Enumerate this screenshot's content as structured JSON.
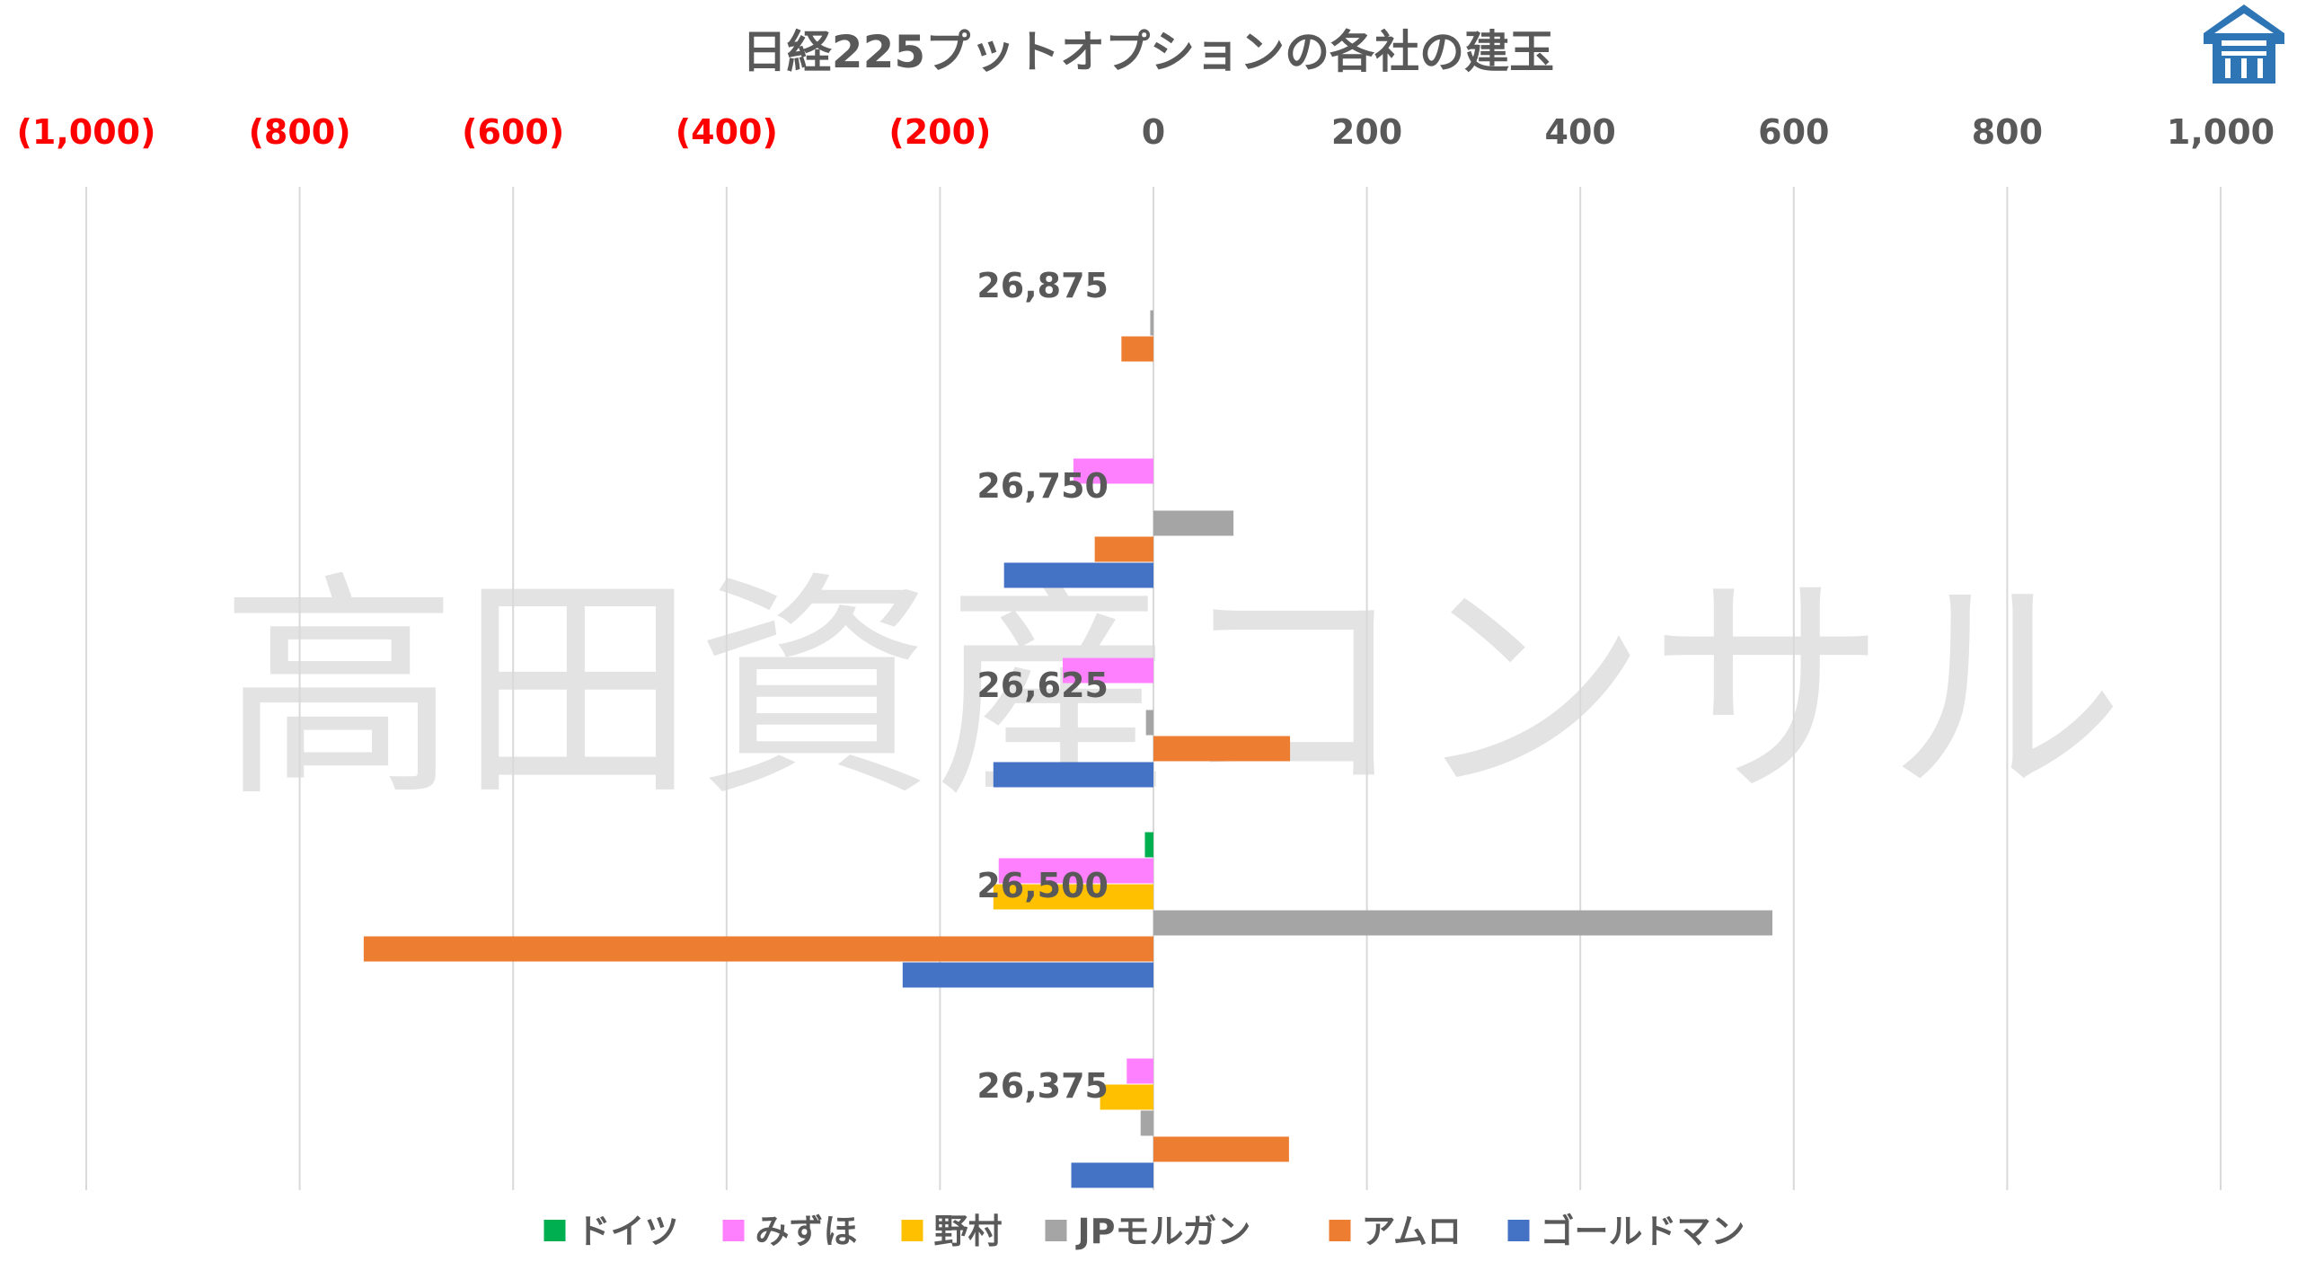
{
  "watermark": "高田資産コンサル",
  "logo": {
    "icon": "building-roof-icon",
    "color": "#2e75b6"
  },
  "colors": {
    "axis_negative": "#ff0000",
    "axis_positive": "#595959",
    "grid": "#d9d9d9"
  },
  "chart_data": {
    "type": "bar",
    "orientation": "horizontal",
    "title": "日経225プットオプションの各社の建玉",
    "xlim": [
      -1000,
      1000
    ],
    "x_ticks": [
      -1000,
      -800,
      -600,
      -400,
      -200,
      0,
      200,
      400,
      600,
      800,
      1000
    ],
    "x_tick_labels": [
      "(1,000)",
      "(800)",
      "(600)",
      "(400)",
      "(200)",
      "0",
      "200",
      "400",
      "600",
      "800",
      "1,000"
    ],
    "grid": true,
    "legend_position": "bottom",
    "categories": [
      "26,875",
      "26,750",
      "26,625",
      "26,500",
      "26,375"
    ],
    "series": [
      {
        "name": "ドイツ",
        "color": "#00b050",
        "values": [
          0,
          0,
          0,
          -8,
          0
        ]
      },
      {
        "name": "みずほ",
        "color": "#ff80ff",
        "values": [
          0,
          -75,
          -85,
          -145,
          -25
        ]
      },
      {
        "name": "野村",
        "color": "#ffc000",
        "values": [
          0,
          0,
          0,
          -150,
          -50
        ]
      },
      {
        "name": "JPモルガン",
        "color": "#a5a5a5",
        "values": [
          -3,
          75,
          -7,
          580,
          -12
        ]
      },
      {
        "name": "アムロ",
        "color": "#ed7d31",
        "values": [
          -30,
          -55,
          128,
          -740,
          127
        ]
      },
      {
        "name": "ゴールドマン",
        "color": "#4472c4",
        "values": [
          0,
          -140,
          -150,
          -235,
          -77
        ]
      }
    ]
  }
}
